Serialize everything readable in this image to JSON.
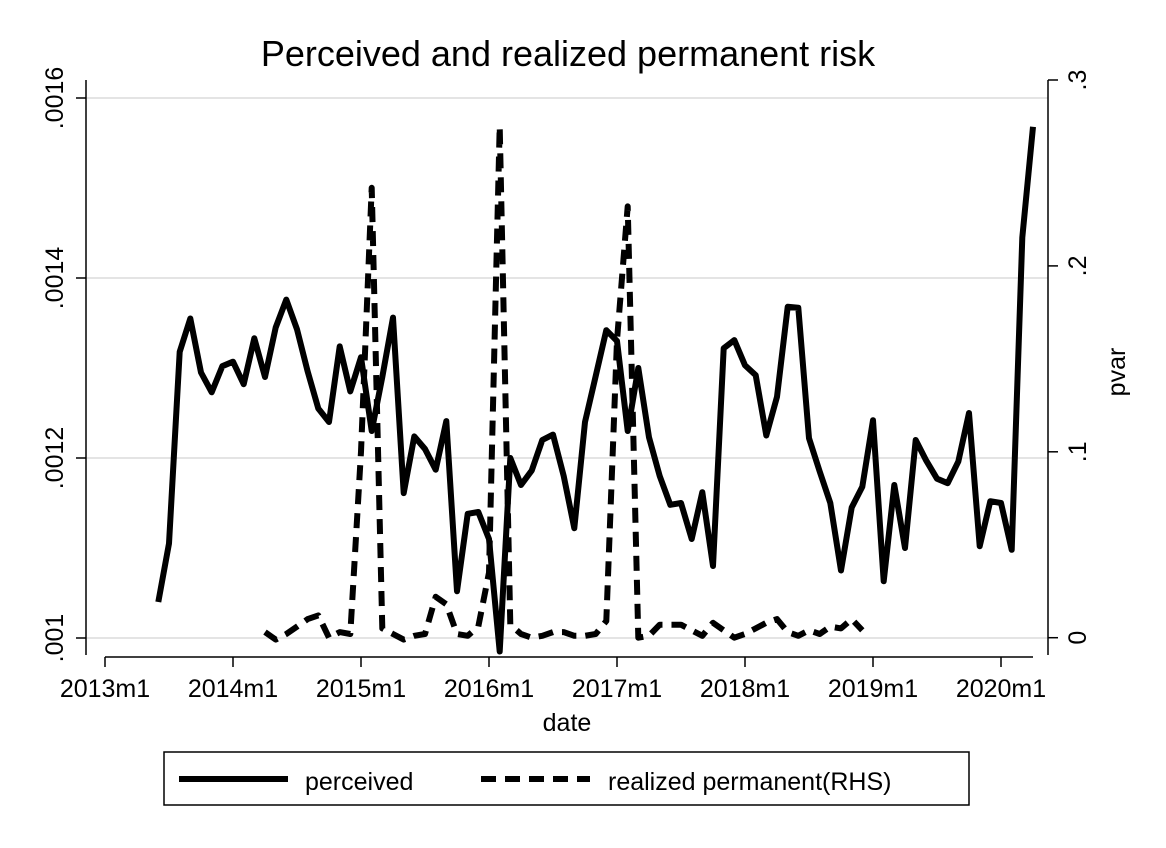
{
  "chart_data": {
    "type": "line",
    "title": "Perceived and realized permanent risk",
    "xlabel": "date",
    "ylabel_left": "",
    "ylabel_right": "pvar",
    "x_ticks": [
      "2013m1",
      "2014m1",
      "2015m1",
      "2016m1",
      "2017m1",
      "2018m1",
      "2019m1",
      "2020m1"
    ],
    "y_left_ticks": [
      ".001",
      ".0012",
      ".0014",
      ".0016"
    ],
    "y_left_tick_values": [
      0.001,
      0.0012,
      0.0014,
      0.0016
    ],
    "y_right_ticks": [
      "0",
      ".1",
      ".2",
      ".3"
    ],
    "y_right_tick_values": [
      0,
      0.1,
      0.2,
      0.3
    ],
    "xlim": [
      "2013-01",
      "2020-04"
    ],
    "ylim_left": [
      0.00098,
      0.00162
    ],
    "ylim_right": [
      -0.005,
      0.3
    ],
    "grid": true,
    "legend_position": "bottom",
    "series": [
      {
        "name": "perceived",
        "axis": "left",
        "style": "solid",
        "color": "#000000",
        "points": [
          [
            "2013-06",
            0.00104
          ],
          [
            "2013-07",
            0.001105
          ],
          [
            "2013-08",
            0.001318
          ],
          [
            "2013-09",
            0.001355
          ],
          [
            "2013-10",
            0.001295
          ],
          [
            "2013-11",
            0.001273
          ],
          [
            "2013-12",
            0.001302
          ],
          [
            "2014-01",
            0.001307
          ],
          [
            "2014-02",
            0.001282
          ],
          [
            "2014-03",
            0.001333
          ],
          [
            "2014-04",
            0.00129
          ],
          [
            "2014-05",
            0.001345
          ],
          [
            "2014-06",
            0.001376
          ],
          [
            "2014-07",
            0.001343
          ],
          [
            "2014-08",
            0.001296
          ],
          [
            "2014-09",
            0.001255
          ],
          [
            "2014-10",
            0.00124
          ],
          [
            "2014-11",
            0.001324
          ],
          [
            "2014-12",
            0.001274
          ],
          [
            "2015-01",
            0.001312
          ],
          [
            "2015-02",
            0.00123
          ],
          [
            "2015-03",
            0.00129
          ],
          [
            "2015-04",
            0.001356
          ],
          [
            "2015-05",
            0.001161
          ],
          [
            "2015-06",
            0.001224
          ],
          [
            "2015-07",
            0.00121
          ],
          [
            "2015-08",
            0.001187
          ],
          [
            "2015-09",
            0.001241
          ],
          [
            "2015-10",
            0.001052
          ],
          [
            "2015-11",
            0.001138
          ],
          [
            "2015-12",
            0.00114
          ],
          [
            "2016-01",
            0.00111
          ],
          [
            "2016-02",
            0.000985
          ],
          [
            "2016-03",
            0.0012
          ],
          [
            "2016-04",
            0.00117
          ],
          [
            "2016-05",
            0.001186
          ],
          [
            "2016-06",
            0.00122
          ],
          [
            "2016-07",
            0.001226
          ],
          [
            "2016-08",
            0.00118
          ],
          [
            "2016-09",
            0.001122
          ],
          [
            "2016-10",
            0.00124
          ],
          [
            "2016-11",
            0.001291
          ],
          [
            "2016-12",
            0.001342
          ],
          [
            "2017-01",
            0.00133
          ],
          [
            "2017-02",
            0.00123
          ],
          [
            "2017-03",
            0.0013
          ],
          [
            "2017-04",
            0.001223
          ],
          [
            "2017-05",
            0.00118
          ],
          [
            "2017-06",
            0.001148
          ],
          [
            "2017-07",
            0.00115
          ],
          [
            "2017-08",
            0.00111
          ],
          [
            "2017-09",
            0.001162
          ],
          [
            "2017-10",
            0.00108
          ],
          [
            "2017-11",
            0.001322
          ],
          [
            "2017-12",
            0.001331
          ],
          [
            "2018-01",
            0.001303
          ],
          [
            "2018-02",
            0.001292
          ],
          [
            "2018-03",
            0.001225
          ],
          [
            "2018-04",
            0.001268
          ],
          [
            "2018-05",
            0.001368
          ],
          [
            "2018-06",
            0.001367
          ],
          [
            "2018-07",
            0.001222
          ],
          [
            "2018-08",
            0.001185
          ],
          [
            "2018-09",
            0.00115
          ],
          [
            "2018-10",
            0.001075
          ],
          [
            "2018-11",
            0.001145
          ],
          [
            "2018-12",
            0.001168
          ],
          [
            "2019-01",
            0.001242
          ],
          [
            "2019-02",
            0.001063
          ],
          [
            "2019-03",
            0.00117
          ],
          [
            "2019-04",
            0.0011
          ],
          [
            "2019-05",
            0.00122
          ],
          [
            "2019-06",
            0.001197
          ],
          [
            "2019-07",
            0.001177
          ],
          [
            "2019-08",
            0.001172
          ],
          [
            "2019-09",
            0.001196
          ],
          [
            "2019-10",
            0.00125
          ],
          [
            "2019-11",
            0.001102
          ],
          [
            "2019-12",
            0.001152
          ],
          [
            "2020-01",
            0.00115
          ],
          [
            "2020-02",
            0.001098
          ],
          [
            "2020-03",
            0.001445
          ],
          [
            "2020-04",
            0.001568
          ]
        ]
      },
      {
        "name": "realized permanent(RHS)",
        "axis": "right",
        "style": "dashed",
        "color": "#000000",
        "points": [
          [
            "2014-04",
            0.003
          ],
          [
            "2014-05",
            -0.001
          ],
          [
            "2014-06",
            0.002
          ],
          [
            "2014-07",
            0.006
          ],
          [
            "2014-08",
            0.01
          ],
          [
            "2014-09",
            0.012
          ],
          [
            "2014-10",
            0.0
          ],
          [
            "2014-11",
            0.003
          ],
          [
            "2014-12",
            0.002
          ],
          [
            "2015-01",
            0.1
          ],
          [
            "2015-02",
            0.242
          ],
          [
            "2015-03",
            0.005
          ],
          [
            "2015-04",
            0.002
          ],
          [
            "2015-05",
            -0.001
          ],
          [
            "2015-06",
            0.001
          ],
          [
            "2015-07",
            0.002
          ],
          [
            "2015-08",
            0.022
          ],
          [
            "2015-09",
            0.018
          ],
          [
            "2015-10",
            0.002
          ],
          [
            "2015-11",
            0.001
          ],
          [
            "2015-12",
            0.006
          ],
          [
            "2016-01",
            0.035
          ],
          [
            "2016-02",
            0.275
          ],
          [
            "2016-03",
            0.007
          ],
          [
            "2016-04",
            0.002
          ],
          [
            "2016-05",
            0.0
          ],
          [
            "2016-06",
            0.001
          ],
          [
            "2016-07",
            0.003
          ],
          [
            "2016-08",
            0.003
          ],
          [
            "2016-09",
            0.001
          ],
          [
            "2016-10",
            0.001
          ],
          [
            "2016-11",
            0.002
          ],
          [
            "2016-12",
            0.009
          ],
          [
            "2017-01",
            0.16
          ],
          [
            "2017-02",
            0.232
          ],
          [
            "2017-03",
            0.0
          ],
          [
            "2017-04",
            0.001
          ],
          [
            "2017-05",
            0.007
          ],
          [
            "2017-06",
            0.007
          ],
          [
            "2017-07",
            0.007
          ],
          [
            "2017-08",
            0.004
          ],
          [
            "2017-09",
            0.001
          ],
          [
            "2017-10",
            0.008
          ],
          [
            "2017-11",
            0.004
          ],
          [
            "2017-12",
            0.0
          ],
          [
            "2018-01",
            0.002
          ],
          [
            "2018-02",
            0.005
          ],
          [
            "2018-03",
            0.008
          ],
          [
            "2018-04",
            0.01
          ],
          [
            "2018-05",
            0.003
          ],
          [
            "2018-06",
            0.001
          ],
          [
            "2018-07",
            0.004
          ],
          [
            "2018-08",
            0.002
          ],
          [
            "2018-09",
            0.006
          ],
          [
            "2018-10",
            0.005
          ],
          [
            "2018-11",
            0.01
          ],
          [
            "2018-12",
            0.004
          ]
        ]
      }
    ]
  }
}
